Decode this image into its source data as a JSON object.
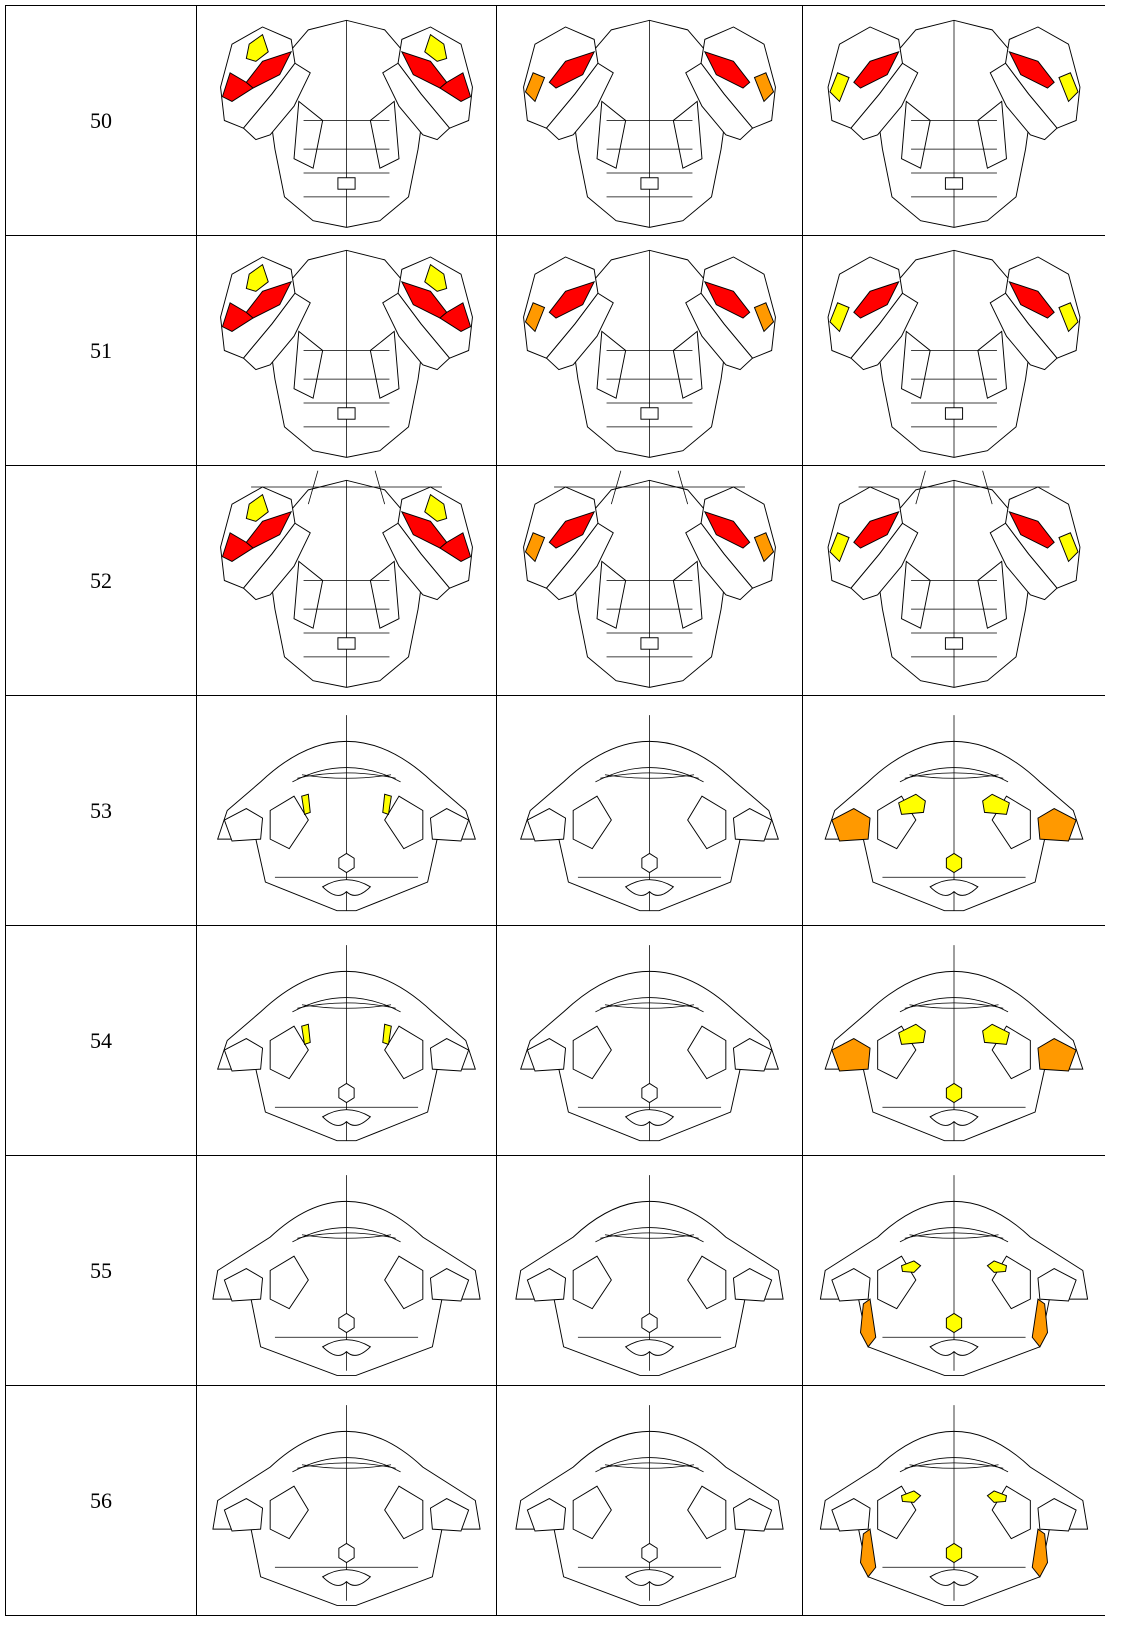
{
  "table": {
    "rows": [
      {
        "label": "50"
      },
      {
        "label": "51"
      },
      {
        "label": "52"
      },
      {
        "label": "53"
      },
      {
        "label": "54"
      },
      {
        "label": "55"
      },
      {
        "label": "56"
      }
    ]
  }
}
